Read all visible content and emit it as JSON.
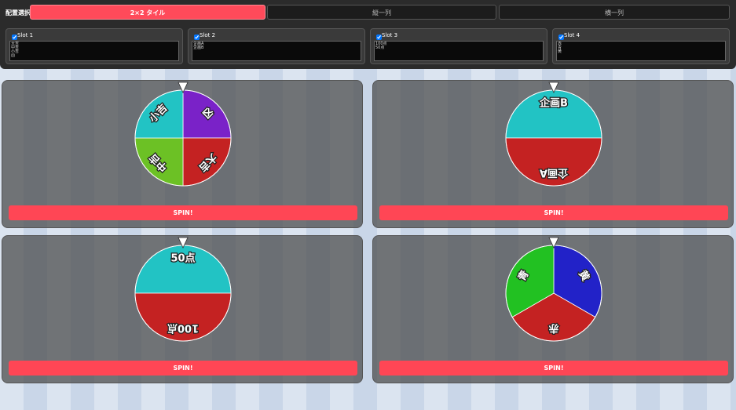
{
  "header": {
    "label": "配置選択:",
    "layouts": [
      {
        "text": "2×2 タイル",
        "active": true
      },
      {
        "text": "縦一列",
        "active": false
      },
      {
        "text": "横一列",
        "active": false
      }
    ]
  },
  "slots": [
    {
      "label": "Slot 1",
      "text": "大吉\n中吉\n小吉\n凶"
    },
    {
      "label": "Slot 2",
      "text": "企画A\n企画B"
    },
    {
      "label": "Slot 3",
      "text": "100点\n50点"
    },
    {
      "label": "Slot 4",
      "text": "赤\n青\n黄"
    }
  ],
  "wheels": [
    {
      "rotation": 0,
      "segments": [
        {
          "label": "凶",
          "color": "#7a22c8"
        },
        {
          "label": "大吉",
          "color": "#c42222"
        },
        {
          "label": "中吉",
          "color": "#6cc125"
        },
        {
          "label": "小吉",
          "color": "#22c3c4"
        }
      ],
      "button": "SPIN!"
    },
    {
      "rotation": -90,
      "segments": [
        {
          "label": "企画B",
          "color": "#22c3c4"
        },
        {
          "label": "企画A",
          "color": "#c42222"
        }
      ],
      "button": "SPIN!"
    },
    {
      "rotation": -90,
      "segments": [
        {
          "label": "50点",
          "color": "#22c3c4"
        },
        {
          "label": "100点",
          "color": "#c42222"
        }
      ],
      "button": "SPIN!"
    },
    {
      "rotation": 0,
      "segments": [
        {
          "label": "黄",
          "color": "#2222c8"
        },
        {
          "label": "赤",
          "color": "#c42222"
        },
        {
          "label": "青",
          "color": "#22c122"
        }
      ],
      "button": "SPIN!"
    }
  ]
}
